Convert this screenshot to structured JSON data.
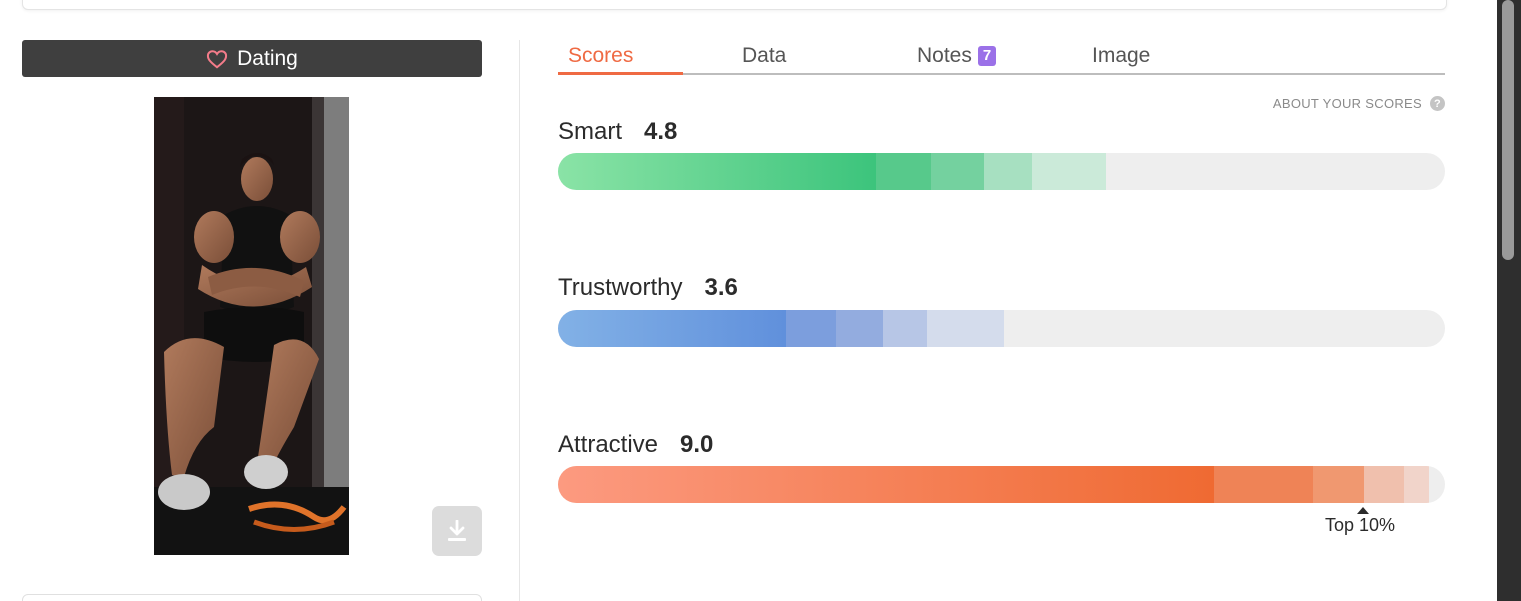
{
  "left_panel": {
    "category_label": "Dating",
    "download_icon": "download-icon"
  },
  "tabs": [
    {
      "label": "Scores",
      "active": true
    },
    {
      "label": "Data",
      "active": false
    },
    {
      "label": "Notes",
      "active": false,
      "badge": "7"
    },
    {
      "label": "Image",
      "active": false
    }
  ],
  "about_link": "ABOUT YOUR SCORES",
  "scores": [
    {
      "name": "Smart",
      "value": "4.8",
      "color": "#3cc47c"
    },
    {
      "name": "Trustworthy",
      "value": "3.6",
      "color": "#6090dc"
    },
    {
      "name": "Attractive",
      "value": "9.0",
      "color": "#ef6a32",
      "marker_label": "Top 10%"
    }
  ],
  "colors": {
    "accent": "#ef6a43",
    "badge": "#9b71e8",
    "dark_button": "#3f3f3f"
  }
}
